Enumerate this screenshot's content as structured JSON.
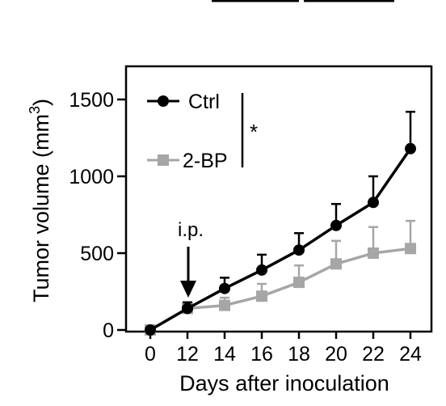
{
  "chart_data": {
    "type": "line",
    "title": "",
    "xlabel": "Days after inoculation",
    "ylabel": "Tumor volume (mm",
    "ylabel_superscript": "3",
    "ylabel_close": ")",
    "categories": [
      "0",
      "12",
      "14",
      "16",
      "18",
      "20",
      "22",
      "24"
    ],
    "ylim": [
      0,
      1580
    ],
    "yticks": [
      0,
      500,
      1000,
      1500
    ],
    "ytick_labels": [
      "0",
      "500",
      "1000",
      "1500"
    ],
    "grid": false,
    "legend_position": "top-left",
    "series": [
      {
        "name": "Ctrl",
        "color": "#000000",
        "marker": "circle",
        "values": [
          0,
          140,
          270,
          390,
          520,
          680,
          830,
          1180
        ],
        "errors": [
          0,
          40,
          70,
          100,
          110,
          140,
          170,
          240
        ]
      },
      {
        "name": "2-BP",
        "color": "#a6a6a6",
        "marker": "square",
        "values": [
          0,
          140,
          160,
          220,
          310,
          430,
          500,
          530
        ],
        "errors": [
          0,
          40,
          50,
          80,
          110,
          150,
          170,
          180
        ]
      }
    ],
    "annotations": {
      "arrow_label": "i.p.",
      "arrow_category": "12",
      "significance": "*"
    }
  }
}
